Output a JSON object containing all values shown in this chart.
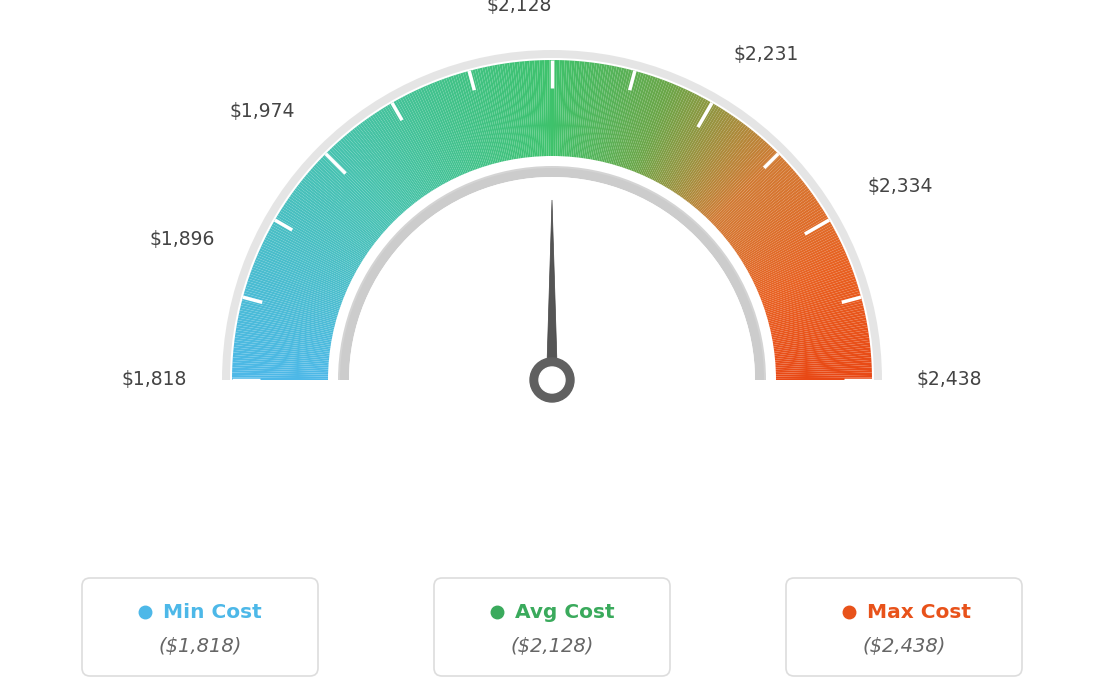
{
  "min_val": 1818,
  "avg_val": 2128,
  "max_val": 2438,
  "tick_labels": [
    "$1,818",
    "$1,896",
    "$1,974",
    "$2,128",
    "$2,231",
    "$2,334",
    "$2,438"
  ],
  "tick_values": [
    1818,
    1896,
    1974,
    2128,
    2231,
    2334,
    2438
  ],
  "legend": [
    {
      "label": "Min Cost",
      "value": "($1,818)",
      "color": "#4db8e8",
      "dot_color": "#4db8e8"
    },
    {
      "label": "Avg Cost",
      "value": "($2,128)",
      "color": "#3aaa5c",
      "dot_color": "#3aaa5c"
    },
    {
      "label": "Max Cost",
      "value": "($2,438)",
      "color": "#e8521a",
      "dot_color": "#e8521a"
    }
  ],
  "needle_value": 2128,
  "background_color": "#ffffff",
  "colors": {
    "blue": [
      0.302,
      0.722,
      0.91
    ],
    "teal": [
      0.275,
      0.78,
      0.62
    ],
    "green": [
      0.243,
      0.78,
      0.42
    ],
    "olive": [
      0.5,
      0.58,
      0.25
    ],
    "orange": [
      0.91,
      0.42,
      0.15
    ],
    "red_orange": [
      0.91,
      0.3,
      0.1
    ]
  }
}
